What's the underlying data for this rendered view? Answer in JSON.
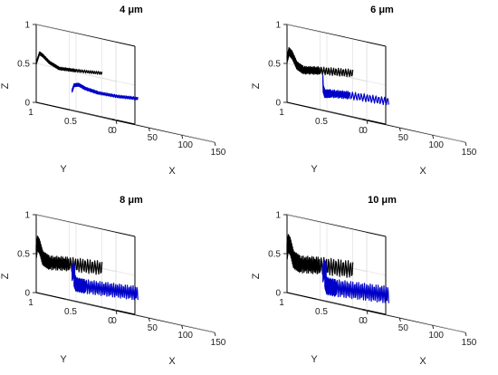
{
  "colors": {
    "black_series": "#000000",
    "blue_series": "#0000c8",
    "projection": "#3a3a3a",
    "grid": "#dcdcdc"
  },
  "chart_data": [
    {
      "type": "line3d",
      "title": "4  μm",
      "xlabel": "X",
      "ylabel": "Y",
      "zlabel": "Z",
      "xlim": [
        0,
        150
      ],
      "ylim": [
        0,
        1
      ],
      "zlim": [
        0,
        1
      ],
      "xticks": [
        "0",
        "50",
        "100",
        "150"
      ],
      "yticks": [
        "0",
        "0.5",
        "1"
      ],
      "zticks": [
        "0",
        "0.5",
        "1"
      ],
      "amplitude": 0.02,
      "series": [
        {
          "role": "upper",
          "color": "#000000",
          "points": [
            {
              "x": 0,
              "y": 1,
              "z": 0.5
            },
            {
              "x": 5,
              "y": 1,
              "z": 0.64
            },
            {
              "x": 10,
              "y": 1,
              "z": 0.62
            },
            {
              "x": 20,
              "y": 1,
              "z": 0.55
            },
            {
              "x": 35,
              "y": 1,
              "z": 0.5
            },
            {
              "x": 60,
              "y": 1,
              "z": 0.52
            },
            {
              "x": 100,
              "y": 1,
              "z": 0.56
            }
          ]
        },
        {
          "role": "lower",
          "color": "#0000c8",
          "points": [
            {
              "x": 0,
              "y": 0.55,
              "z": 0.25
            },
            {
              "x": 3,
              "y": 0.55,
              "z": 0.33
            },
            {
              "x": 10,
              "y": 0.55,
              "z": 0.35
            },
            {
              "x": 20,
              "y": 0.55,
              "z": 0.32
            },
            {
              "x": 40,
              "y": 0.55,
              "z": 0.3
            },
            {
              "x": 70,
              "y": 0.55,
              "z": 0.31
            },
            {
              "x": 100,
              "y": 0.55,
              "z": 0.34
            }
          ]
        },
        {
          "role": "projection",
          "color": "#3a3a3a",
          "points": [
            {
              "x": 0,
              "y": 0.05,
              "z": 0
            },
            {
              "x": 5,
              "y": 0.45,
              "z": 0
            },
            {
              "x": 15,
              "y": 0.7,
              "z": 0
            },
            {
              "x": 40,
              "y": 0.82,
              "z": 0
            },
            {
              "x": 100,
              "y": 0.88,
              "z": 0
            }
          ]
        }
      ]
    },
    {
      "type": "line3d",
      "title": "6  μm",
      "xlabel": "X",
      "ylabel": "Y",
      "zlabel": "Z",
      "xlim": [
        0,
        150
      ],
      "ylim": [
        0,
        1
      ],
      "zlim": [
        0,
        1
      ],
      "xticks": [
        "0",
        "50",
        "100",
        "150"
      ],
      "yticks": [
        "0",
        "0.5",
        "1"
      ],
      "zticks": [
        "0",
        "0.5",
        "1"
      ],
      "amplitude": 0.05,
      "series": [
        {
          "role": "upper",
          "color": "#000000",
          "points": [
            {
              "x": 0,
              "y": 1,
              "z": 0.55
            },
            {
              "x": 3,
              "y": 1,
              "z": 0.66
            },
            {
              "x": 8,
              "y": 1,
              "z": 0.62
            },
            {
              "x": 15,
              "y": 1,
              "z": 0.5
            },
            {
              "x": 25,
              "y": 1,
              "z": 0.46
            },
            {
              "x": 50,
              "y": 1,
              "z": 0.5
            },
            {
              "x": 100,
              "y": 1,
              "z": 0.56
            }
          ]
        },
        {
          "role": "lower",
          "color": "#0000c8",
          "points": [
            {
              "x": 0,
              "y": 0.55,
              "z": 0.4
            },
            {
              "x": 0.5,
              "y": 0.55,
              "z": 0.28
            },
            {
              "x": 3,
              "y": 0.55,
              "z": 0.22
            },
            {
              "x": 12,
              "y": 0.55,
              "z": 0.24
            },
            {
              "x": 40,
              "y": 0.55,
              "z": 0.27
            },
            {
              "x": 100,
              "y": 0.55,
              "z": 0.3
            }
          ]
        },
        {
          "role": "projection",
          "color": "#3a3a3a",
          "points": [
            {
              "x": 0,
              "y": 0.05,
              "z": 0
            },
            {
              "x": 2,
              "y": 0.45,
              "z": 0
            },
            {
              "x": 8,
              "y": 0.7,
              "z": 0
            },
            {
              "x": 30,
              "y": 0.82,
              "z": 0
            },
            {
              "x": 100,
              "y": 0.88,
              "z": 0
            }
          ]
        }
      ]
    },
    {
      "type": "line3d",
      "title": "8  μm",
      "xlabel": "X",
      "ylabel": "Y",
      "zlabel": "Z",
      "xlim": [
        0,
        150
      ],
      "ylim": [
        0,
        1
      ],
      "zlim": [
        0,
        1
      ],
      "xticks": [
        "0",
        "50",
        "100",
        "150"
      ],
      "yticks": [
        "0",
        "0.5",
        "1"
      ],
      "zticks": [
        "0",
        "0.5",
        "1"
      ],
      "amplitude": 0.09,
      "series": [
        {
          "role": "upper",
          "color": "#000000",
          "points": [
            {
              "x": 0,
              "y": 1,
              "z": 0.52
            },
            {
              "x": 2,
              "y": 1,
              "z": 0.64
            },
            {
              "x": 5,
              "y": 1,
              "z": 0.6
            },
            {
              "x": 10,
              "y": 1,
              "z": 0.46
            },
            {
              "x": 20,
              "y": 1,
              "z": 0.42
            },
            {
              "x": 50,
              "y": 1,
              "z": 0.46
            },
            {
              "x": 100,
              "y": 1,
              "z": 0.5
            }
          ]
        },
        {
          "role": "lower",
          "color": "#0000c8",
          "points": [
            {
              "x": 0,
              "y": 0.55,
              "z": 0.34
            },
            {
              "x": 2,
              "y": 0.55,
              "z": 0.4
            },
            {
              "x": 4,
              "y": 0.55,
              "z": 0.36
            },
            {
              "x": 3,
              "y": 0.55,
              "z": 0.28
            },
            {
              "x": 6,
              "y": 0.55,
              "z": 0.22
            },
            {
              "x": 20,
              "y": 0.55,
              "z": 0.22
            },
            {
              "x": 60,
              "y": 0.55,
              "z": 0.25
            },
            {
              "x": 100,
              "y": 0.55,
              "z": 0.28
            }
          ]
        },
        {
          "role": "projection",
          "color": "#3a3a3a",
          "points": [
            {
              "x": 0,
              "y": 0.05,
              "z": 0
            },
            {
              "x": 2,
              "y": 0.45,
              "z": 0
            },
            {
              "x": 8,
              "y": 0.7,
              "z": 0
            },
            {
              "x": 30,
              "y": 0.82,
              "z": 0
            },
            {
              "x": 100,
              "y": 0.88,
              "z": 0
            }
          ]
        }
      ]
    },
    {
      "type": "line3d",
      "title": "10  μm",
      "xlabel": "X",
      "ylabel": "Y",
      "zlabel": "Z",
      "xlim": [
        0,
        150
      ],
      "ylim": [
        0,
        1
      ],
      "zlim": [
        0,
        1
      ],
      "xticks": [
        "0",
        "50",
        "100",
        "150"
      ],
      "yticks": [
        "0",
        "0.5",
        "1"
      ],
      "zticks": [
        "0",
        "0.5",
        "1"
      ],
      "amplitude": 0.11,
      "series": [
        {
          "role": "upper",
          "color": "#000000",
          "points": [
            {
              "x": 0,
              "y": 1,
              "z": 0.52
            },
            {
              "x": 2,
              "y": 1,
              "z": 0.64
            },
            {
              "x": 5,
              "y": 1,
              "z": 0.6
            },
            {
              "x": 10,
              "y": 1,
              "z": 0.44
            },
            {
              "x": 20,
              "y": 1,
              "z": 0.4
            },
            {
              "x": 50,
              "y": 1,
              "z": 0.44
            },
            {
              "x": 100,
              "y": 1,
              "z": 0.48
            }
          ]
        },
        {
          "role": "lower",
          "color": "#0000c8",
          "points": [
            {
              "x": 0,
              "y": 0.55,
              "z": 0.34
            },
            {
              "x": 2,
              "y": 0.55,
              "z": 0.42
            },
            {
              "x": 5,
              "y": 0.55,
              "z": 0.38
            },
            {
              "x": 3,
              "y": 0.55,
              "z": 0.28
            },
            {
              "x": 6,
              "y": 0.55,
              "z": 0.2
            },
            {
              "x": 20,
              "y": 0.55,
              "z": 0.2
            },
            {
              "x": 60,
              "y": 0.55,
              "z": 0.23
            },
            {
              "x": 100,
              "y": 0.55,
              "z": 0.26
            }
          ]
        },
        {
          "role": "projection",
          "color": "#3a3a3a",
          "points": [
            {
              "x": 0,
              "y": 0.05,
              "z": 0
            },
            {
              "x": 2,
              "y": 0.45,
              "z": 0
            },
            {
              "x": 8,
              "y": 0.7,
              "z": 0
            },
            {
              "x": 30,
              "y": 0.82,
              "z": 0
            },
            {
              "x": 100,
              "y": 0.88,
              "z": 0
            }
          ]
        }
      ]
    }
  ]
}
